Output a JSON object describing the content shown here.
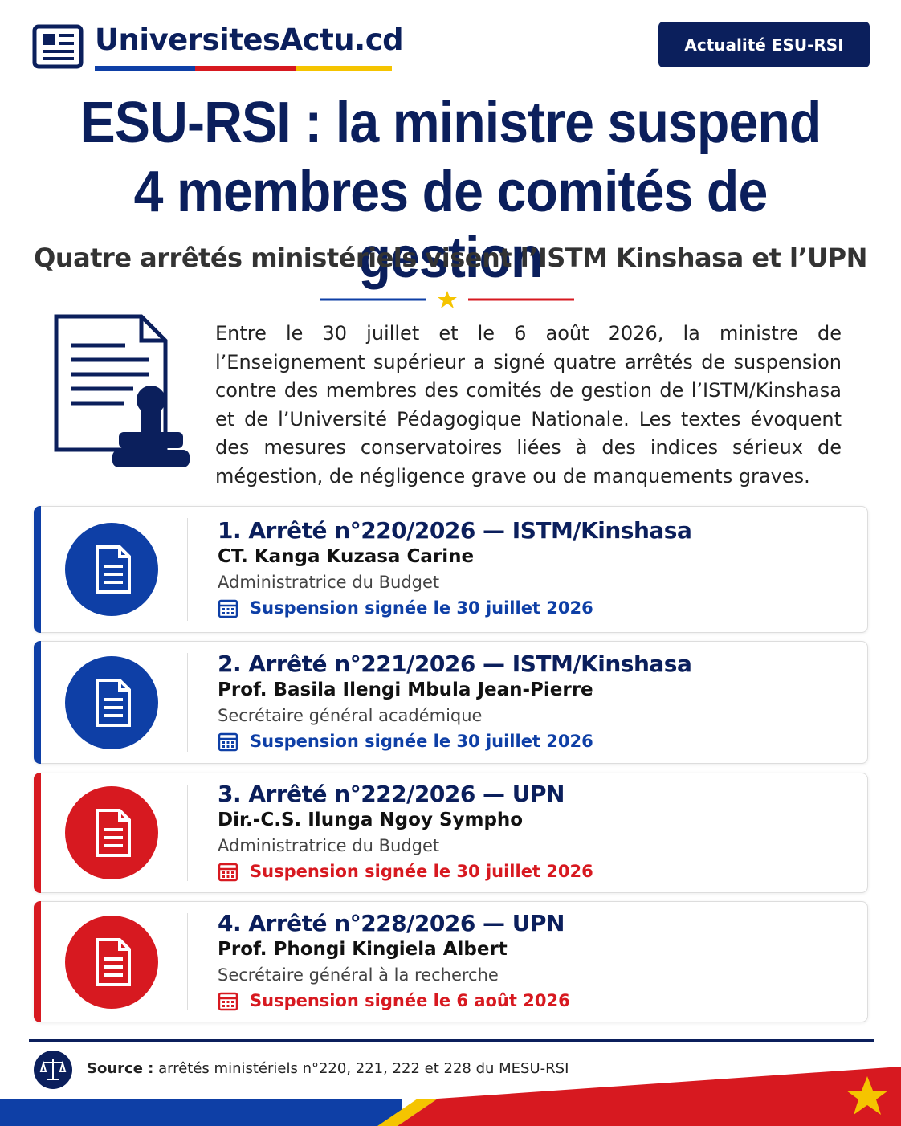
{
  "header": {
    "logo": "UniversitesActu.cd",
    "badge": "Actualité ESU-RSI"
  },
  "title": [
    "ESU-RSI : la ministre suspend",
    "4 membres de comités de gestion"
  ],
  "subtitle": "Quatre arrêtés ministériels visent l’ISTM Kinshasa et l’UPN",
  "intro": "Entre le 30 juillet et le 6 août 2026, la ministre de l’Enseignement supérieur a signé quatre arrêtés de suspension contre des membres des comités de gestion de l’ISTM/Kinshasa et de l’Université Pédagogique Nationale. Les textes évoquent des mesures conservatoires liées à des indices sérieux de mégestion, de négligence grave ou de manquements graves.",
  "items": [
    {
      "heading": "1. Arrêté n°220/2026 — ISTM/Kinshasa",
      "name": "CT. Kanga Kuzasa Carine",
      "role": "Administratrice du Budget",
      "date": "Suspension signée le 30 juillet 2026",
      "color": "#0e3fa6"
    },
    {
      "heading": "2. Arrêté n°221/2026 — ISTM/Kinshasa",
      "name": "Prof. Basila Ilengi Mbula Jean-Pierre",
      "role": "Secrétaire général académique",
      "date": "Suspension signée le 30 juillet 2026",
      "color": "#0e3fa6"
    },
    {
      "heading": "3. Arrêté n°222/2026 — UPN",
      "name": "Dir.-C.S. Ilunga Ngoy Sympho",
      "role": "Administratrice du Budget",
      "date": "Suspension signée le 30 juillet 2026",
      "color": "#d71920"
    },
    {
      "heading": "4. Arrêté n°228/2026 — UPN",
      "name": "Prof. Phongi Kingiela Albert",
      "role": "Secrétaire général à la recherche",
      "date": "Suspension signée le 6 août 2026",
      "color": "#d71920"
    }
  ],
  "footer": {
    "label": "Source :",
    "text": "arrêtés ministériels n°220, 221, 222 et 228 du MESU-RSI"
  }
}
